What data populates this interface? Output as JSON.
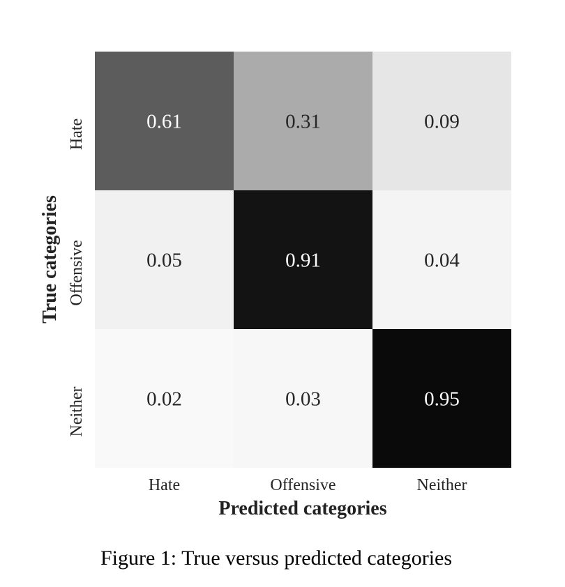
{
  "chart_data": {
    "type": "heatmap",
    "title": "",
    "xlabel": "Predicted categories",
    "ylabel": "True categories",
    "x_categories": [
      "Hate",
      "Offensive",
      "Neither"
    ],
    "y_categories": [
      "Hate",
      "Offensive",
      "Neither"
    ],
    "values": [
      [
        0.61,
        0.31,
        0.09
      ],
      [
        0.05,
        0.91,
        0.04
      ],
      [
        0.02,
        0.03,
        0.95
      ]
    ],
    "value_labels": [
      [
        "0.61",
        "0.31",
        "0.09"
      ],
      [
        "0.05",
        "0.91",
        "0.04"
      ],
      [
        "0.02",
        "0.03",
        "0.95"
      ]
    ],
    "colormap": "greys",
    "vmin": 0,
    "vmax": 1,
    "colorbar": false,
    "grid": false
  },
  "caption": "Figure 1: True versus predicted categories"
}
